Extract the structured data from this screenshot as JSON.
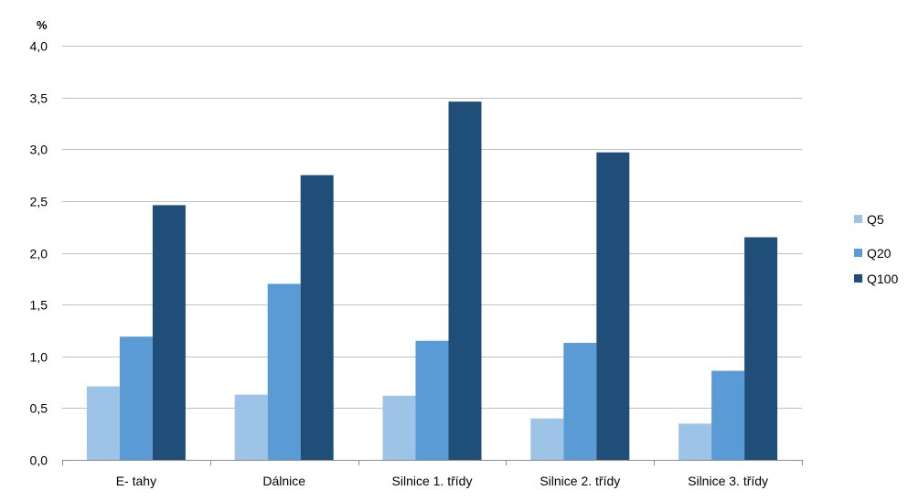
{
  "chart_data": {
    "type": "bar",
    "ylabel": "%",
    "ylim": [
      0,
      4
    ],
    "y_ticks": [
      "0,0",
      "0,5",
      "1,0",
      "1,5",
      "2,0",
      "2,5",
      "3,0",
      "3,5",
      "4,0"
    ],
    "categories": [
      "E- tahy",
      "Dálnice",
      "Silnice 1. třídy",
      "Silnice 2. třídy",
      "Silnice 3. třídy"
    ],
    "series": [
      {
        "name": "Q5",
        "color": "#9dc3e6",
        "values": [
          0.71,
          0.63,
          0.62,
          0.4,
          0.35
        ]
      },
      {
        "name": "Q20",
        "color": "#5b9bd5",
        "values": [
          1.19,
          1.7,
          1.15,
          1.13,
          0.86
        ]
      },
      {
        "name": "Q100",
        "color": "#1f4e79",
        "values": [
          2.46,
          2.75,
          3.46,
          2.97,
          2.15
        ]
      }
    ],
    "grid": true,
    "legend_position": "right"
  }
}
